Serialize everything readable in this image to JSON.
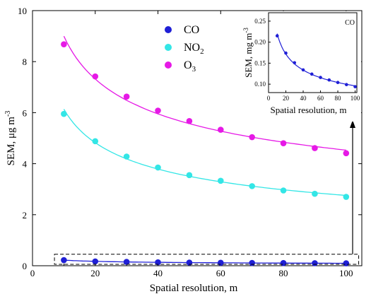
{
  "chart_data": [
    {
      "type": "scatter",
      "title": "",
      "xlabel": "Spatial resolution, m",
      "ylabel_parts": [
        "SEM, μg m",
        "-3"
      ],
      "xlim": [
        0,
        105
      ],
      "ylim": [
        0,
        10
      ],
      "x_ticks": [
        0,
        20,
        40,
        60,
        80,
        100
      ],
      "y_ticks": [
        0,
        2,
        4,
        6,
        8,
        10
      ],
      "grid": false,
      "legend_position": "top-center",
      "fitted_curves": true,
      "x": [
        10,
        20,
        30,
        40,
        50,
        60,
        70,
        80,
        90,
        100
      ],
      "series": [
        {
          "name": "CO",
          "legend_parts": [
            "CO"
          ],
          "color": "#1f1fd6",
          "values": [
            0.22,
            0.17,
            0.15,
            0.135,
            0.125,
            0.117,
            0.11,
            0.105,
            0.1,
            0.095
          ]
        },
        {
          "name": "NO2",
          "legend_parts": [
            "NO",
            "2"
          ],
          "color": "#33e6e6",
          "values": [
            5.95,
            4.88,
            4.28,
            3.85,
            3.55,
            3.33,
            3.12,
            2.95,
            2.82,
            2.7
          ]
        },
        {
          "name": "O3",
          "legend_parts": [
            "O",
            "3"
          ],
          "color": "#e619e6",
          "values": [
            8.68,
            7.42,
            6.63,
            6.08,
            5.67,
            5.33,
            5.04,
            4.8,
            4.61,
            4.41
          ]
        }
      ],
      "zoom_box": {
        "x_range": [
          7,
          104
        ],
        "y_range": [
          0,
          0.45
        ]
      }
    },
    {
      "type": "scatter",
      "title": "",
      "annotation": "CO",
      "xlabel": "Spatial resolution, m",
      "ylabel_parts": [
        "SEM, mg m",
        "-3"
      ],
      "xlim": [
        0,
        102
      ],
      "ylim": [
        0.08,
        0.27
      ],
      "x_ticks": [
        0,
        20,
        40,
        60,
        80,
        100
      ],
      "y_ticks": [
        0.1,
        0.15,
        0.2,
        0.25
      ],
      "y_tick_labels": [
        "0.10",
        "0.15",
        "0.20",
        "0.25"
      ],
      "grid": false,
      "fitted_curves": true,
      "x": [
        10,
        20,
        30,
        40,
        50,
        60,
        70,
        80,
        90,
        100
      ],
      "series": [
        {
          "name": "CO",
          "color": "#1f1fd6",
          "values": [
            0.215,
            0.174,
            0.151,
            0.134,
            0.124,
            0.116,
            0.11,
            0.104,
            0.099,
            0.094
          ]
        }
      ]
    }
  ]
}
